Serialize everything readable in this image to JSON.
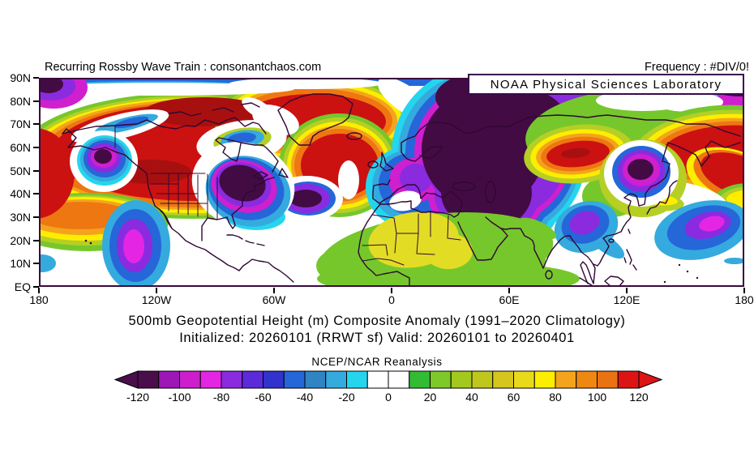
{
  "header": {
    "left": "Recurring Rossby Wave Train : consonantchaos.com",
    "right": "Frequency : #DIV/0!",
    "agency": "NOAA Physical Sciences Laboratory"
  },
  "titles": {
    "line1": "500mb Geopotential Height (m) Composite Anomaly (1991–2020 Climatology)",
    "line2": "Initialized: 20260101 (RRWT sf) Valid: 20260101 to 20260401"
  },
  "axes": {
    "y_labels": [
      "90N",
      "80N",
      "70N",
      "60N",
      "50N",
      "40N",
      "30N",
      "20N",
      "10N",
      "EQ"
    ],
    "x_labels": [
      "180",
      "120W",
      "60W",
      "0",
      "60E",
      "120E",
      "180"
    ]
  },
  "colorbar": {
    "label": "NCEP/NCAR Reanalysis",
    "tick_labels": [
      "-120",
      "-100",
      "-80",
      "-60",
      "-40",
      "-20",
      "0",
      "20",
      "40",
      "60",
      "80",
      "100",
      "120"
    ],
    "segments": [
      "#4a0e4a",
      "#9c17b5",
      "#cc1ecc",
      "#e426e4",
      "#8a2be0",
      "#5b2bd9",
      "#3232cc",
      "#2566d9",
      "#2f84c4",
      "#35aade",
      "#25d5ee",
      "#ffffff",
      "#ffffff",
      "#33bb33",
      "#7ec82a",
      "#a4c91e",
      "#bfc71c",
      "#d6c51f",
      "#e8da1a",
      "#fdee00",
      "#f4a41c",
      "#ee8811",
      "#e97313",
      "#dd1414"
    ],
    "left_arrow": "#4a0e4a",
    "right_arrow": "#dd1414"
  },
  "chart_data": {
    "type": "heatmap",
    "subtype": "filled_contour_world_map",
    "title": "500mb Geopotential Height (m) Composite Anomaly (1991–2020 Climatology)",
    "subtitle": "Initialized: 20260101 (RRWT sf) Valid: 20260101 to 20260401",
    "dataset_label": "NCEP/NCAR Reanalysis",
    "units": "m",
    "lat_ticks": [
      "EQ",
      "10N",
      "20N",
      "30N",
      "40N",
      "50N",
      "60N",
      "70N",
      "80N",
      "90N"
    ],
    "lon_ticks": [
      "180",
      "120W",
      "60W",
      "0",
      "60E",
      "120E",
      "180"
    ],
    "lat_range_deg": [
      0,
      90
    ],
    "lon_range_deg": [
      -180,
      180
    ],
    "colorbar_tick_values": [
      -120,
      -100,
      -80,
      -60,
      -40,
      -20,
      0,
      20,
      40,
      60,
      80,
      100,
      120
    ],
    "contour_interval": 10,
    "legend_position": "bottom",
    "grid": false,
    "anomaly_centers": [
      {
        "region": "Arctic near date line (top-left corner)",
        "sign": "negative",
        "approx_location": "175W 85N",
        "approx_peak": -80
      },
      {
        "region": "Gulf of Alaska",
        "sign": "negative",
        "approx_location": "147W 54N",
        "approx_peak": -130
      },
      {
        "region": "Subtropical NE Pacific",
        "sign": "negative",
        "approx_location": "130W 17N",
        "approx_peak": -90
      },
      {
        "region": "E North America / NW Atlantic",
        "sign": "negative",
        "approx_location": "75W 44N",
        "approx_peak": -130
      },
      {
        "region": "Central N Atlantic (Azores)",
        "sign": "negative",
        "approx_location": "44W 38N",
        "approx_peak": -130
      },
      {
        "region": "Europe / W Russia / Middle East (large)",
        "sign": "negative",
        "approx_location": "40E 55N",
        "approx_peak": -130
      },
      {
        "region": "Arctic NE of Europe (top-right corner)",
        "sign": "negative",
        "approx_location": "175E 87N",
        "approx_peak": -80
      },
      {
        "region": "Japan / Korea",
        "sign": "negative",
        "approx_location": "127E 49N",
        "approx_peak": -130
      },
      {
        "region": "SE Asia / Bay of Bengal",
        "sign": "negative",
        "approx_location": "98E 25N",
        "approx_peak": -70
      },
      {
        "region": "W Pacific subtropics",
        "sign": "negative",
        "approx_location": "158E 26N",
        "approx_peak": -80
      },
      {
        "region": "North America / N Atlantic / Greenland (large)",
        "sign": "positive",
        "approx_location": "120W-30W 40-75N",
        "approx_peak": 130
      },
      {
        "region": "Central Siberia",
        "sign": "positive",
        "approx_location": "95E 57N",
        "approx_peak": 130
      },
      {
        "region": "NE Asia / Sea of Okhotsk",
        "sign": "positive",
        "approx_location": "165E 58N",
        "approx_peak": 130
      },
      {
        "region": "Sahara / NE Africa",
        "sign": "positive",
        "approx_location": "15E 18N",
        "approx_peak": 50
      }
    ]
  }
}
